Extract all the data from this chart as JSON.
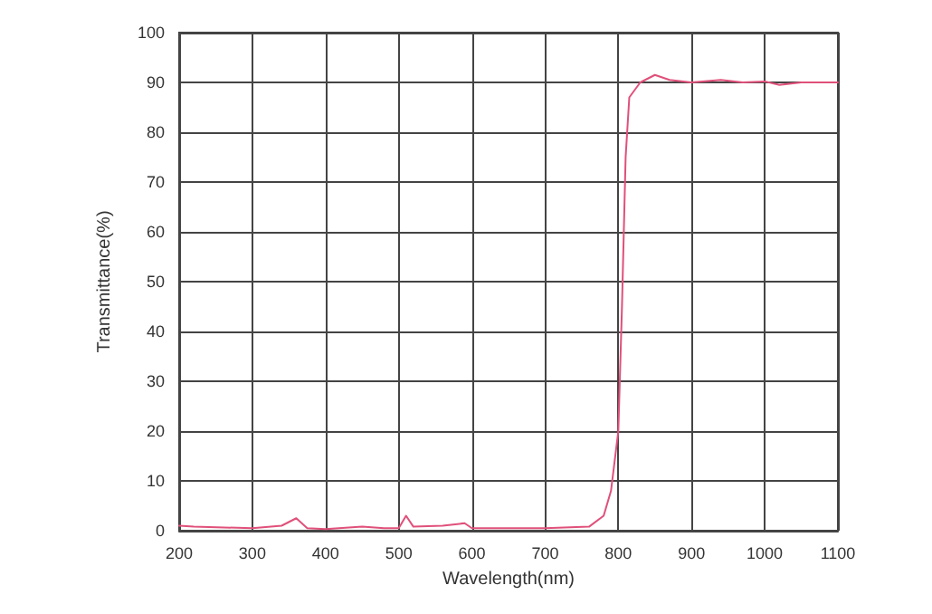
{
  "chart_data": {
    "type": "line",
    "xlabel": "Wavelength(nm)",
    "ylabel": "Transmittance(%)",
    "xlim": [
      200,
      1100
    ],
    "xticks": [
      200,
      300,
      400,
      500,
      600,
      700,
      800,
      900,
      1000,
      1100
    ],
    "ylim": [
      0,
      100
    ],
    "yticks": [
      0,
      10,
      20,
      30,
      40,
      50,
      60,
      70,
      80,
      90,
      100
    ],
    "grid": true,
    "marker": "none",
    "line_style": "solid",
    "series": [
      {
        "color": "#e0507a",
        "x": [
          200,
          220,
          300,
          340,
          360,
          375,
          400,
          450,
          480,
          500,
          510,
          520,
          560,
          590,
          600,
          700,
          760,
          780,
          790,
          800,
          805,
          810,
          815,
          820,
          830,
          850,
          870,
          900,
          940,
          970,
          1000,
          1020,
          1050,
          1100
        ],
        "values": [
          1,
          0.8,
          0.5,
          1,
          2.5,
          0.5,
          0.3,
          0.8,
          0.5,
          0.5,
          3,
          0.8,
          1,
          1.5,
          0.5,
          0.5,
          0.8,
          3,
          8,
          20,
          45,
          75,
          87,
          88,
          90,
          91.5,
          90.5,
          90,
          90.5,
          90,
          90.2,
          89.5,
          90,
          90
        ]
      }
    ]
  }
}
